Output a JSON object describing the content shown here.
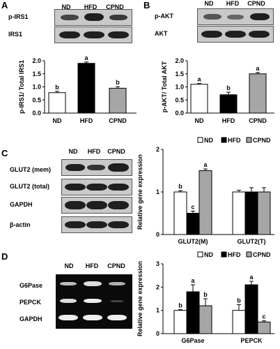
{
  "panels": {
    "A": "A",
    "B": "B",
    "C": "C",
    "D": "D"
  },
  "groups": [
    "ND",
    "HFD",
    "CPND"
  ],
  "blots": {
    "A": {
      "rows": [
        "p-IRS1",
        "IRS1"
      ]
    },
    "B": {
      "rows": [
        "p-AKT",
        "AKT"
      ]
    },
    "C": {
      "rows": [
        "GLUT2 (mem)",
        "GLUT2 (total)",
        "GAPDH",
        "β-actin"
      ]
    },
    "D": {
      "rows": [
        "G6Pase",
        "PEPCK",
        "GAPDH"
      ]
    }
  },
  "legend": {
    "items": [
      "ND",
      "HFD",
      "CPND"
    ]
  },
  "colors": {
    "ND": "#ffffff",
    "HFD": "#000000",
    "CPND": "#a6a6a6"
  },
  "chart_data": [
    {
      "id": "A",
      "type": "bar",
      "categories": [
        "ND",
        "HFD",
        "CPND"
      ],
      "values": [
        0.78,
        1.9,
        0.95
      ],
      "errors": [
        0.05,
        0.05,
        0.06
      ],
      "sig": [
        "b",
        "a",
        "b"
      ],
      "ylabel": "p-IRS1/ Total IRS1",
      "ylim": [
        0,
        2.0
      ],
      "yticks": [
        "0.0",
        "0.5",
        "1.0",
        "1.5",
        "2.0"
      ]
    },
    {
      "id": "B",
      "type": "bar",
      "categories": [
        "ND",
        "HFD",
        "CPND"
      ],
      "values": [
        1.1,
        0.7,
        1.5
      ],
      "errors": [
        0.03,
        0.1,
        0.05
      ],
      "sig": [
        "a",
        "b",
        "a"
      ],
      "ylabel": "p-AKT/ Total AKT",
      "ylim": [
        0,
        2.0
      ],
      "yticks": [
        "0.0",
        "0.5",
        "1.0",
        "1.5",
        "2.0"
      ]
    },
    {
      "id": "C",
      "type": "bar",
      "categories": [
        "GLUT2(M)",
        "GLUT2(T)"
      ],
      "series": [
        {
          "name": "ND",
          "values": [
            1.0,
            1.0
          ],
          "errors": [
            0.03,
            0.04
          ],
          "sig": [
            "b",
            ""
          ]
        },
        {
          "name": "HFD",
          "values": [
            0.5,
            1.0
          ],
          "errors": [
            0.05,
            0.1
          ],
          "sig": [
            "c",
            ""
          ]
        },
        {
          "name": "CPND",
          "values": [
            1.5,
            1.0
          ],
          "errors": [
            0.04,
            0.1
          ],
          "sig": [
            "a",
            ""
          ]
        }
      ],
      "ylabel": "Relative gene expression",
      "ylim": [
        0,
        2
      ],
      "yticks": [
        "0",
        "1",
        "2"
      ]
    },
    {
      "id": "D",
      "type": "bar",
      "categories": [
        "G6Pase",
        "PEPCK"
      ],
      "series": [
        {
          "name": "ND",
          "values": [
            1.0,
            1.0
          ],
          "errors": [
            0.03,
            0.25
          ],
          "sig": [
            "b",
            "b"
          ]
        },
        {
          "name": "HFD",
          "values": [
            1.8,
            2.1
          ],
          "errors": [
            0.3,
            0.15
          ],
          "sig": [
            "a",
            "a"
          ]
        },
        {
          "name": "CPND",
          "values": [
            1.2,
            0.5
          ],
          "errors": [
            0.3,
            0.05
          ],
          "sig": [
            "b",
            "c"
          ]
        }
      ],
      "ylabel": "Relative gene expression",
      "ylim": [
        0,
        3
      ],
      "yticks": [
        "0",
        "1",
        "2",
        "3"
      ]
    }
  ]
}
